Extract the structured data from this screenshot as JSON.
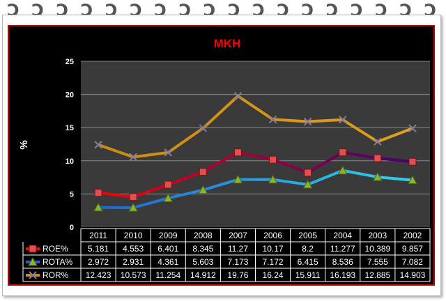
{
  "chart_data": {
    "type": "line",
    "title": "MKH",
    "ylabel": "%",
    "xlabel": "",
    "ylim": [
      0,
      25
    ],
    "yticks": [
      0,
      5,
      10,
      15,
      20,
      25
    ],
    "grid": true,
    "legend": "data-table",
    "categories": [
      "2011",
      "2010",
      "2009",
      "2008",
      "2007",
      "2006",
      "2005",
      "2004",
      "2003",
      "2002"
    ],
    "series": [
      {
        "name": "ROE%",
        "marker": "square",
        "color_start": "#ff0000",
        "color_end": "#3a007a",
        "values": [
          5.181,
          4.553,
          6.401,
          8.345,
          11.27,
          10.17,
          8.2,
          11.277,
          10.389,
          9.857
        ],
        "labels": [
          "5.181",
          "4.553",
          "6.401",
          "8.345",
          "11.27",
          "10.17",
          "8.2",
          "11.277",
          "10.389",
          "9.857"
        ]
      },
      {
        "name": "ROTA%",
        "marker": "triangle",
        "color_start": "#1f5fd0",
        "color_end": "#30d8e8",
        "values": [
          2.972,
          2.931,
          4.361,
          5.603,
          7.173,
          7.172,
          6.415,
          8.536,
          7.555,
          7.082
        ],
        "labels": [
          "2.972",
          "2.931",
          "4.361",
          "5.603",
          "7.173",
          "7.172",
          "6.415",
          "8.536",
          "7.555",
          "7.082"
        ]
      },
      {
        "name": "ROR%",
        "marker": "x",
        "color_start": "#c88a10",
        "color_end": "#e0a020",
        "values": [
          12.423,
          10.573,
          11.254,
          14.912,
          19.76,
          16.24,
          15.911,
          16.193,
          12.885,
          14.903
        ],
        "labels": [
          "12.423",
          "10.573",
          "11.254",
          "14.912",
          "19.76",
          "16.24",
          "15.911",
          "16.193",
          "12.885",
          "14.903"
        ]
      }
    ]
  },
  "colors": {
    "frame_border": "#c00000",
    "background": "#000000",
    "plot_area": "#3a3a3a",
    "title": "#ff0000",
    "text": "#ffffff",
    "marker_roe": "#e05050",
    "marker_rota": "#8fb030"
  }
}
